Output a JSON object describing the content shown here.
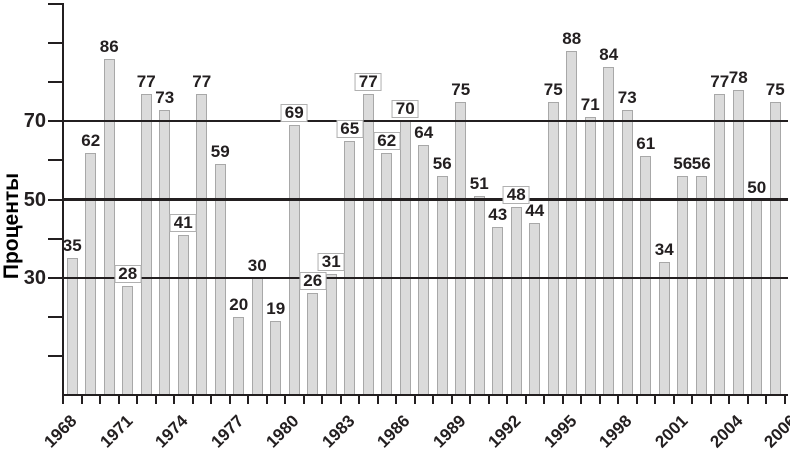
{
  "chart_data": {
    "type": "bar",
    "title": "",
    "ylabel": "Проценты",
    "ylim": [
      0,
      100
    ],
    "y_tick_step": 10,
    "grid": "horizontal-partial",
    "legend": null,
    "gridlines": [
      {
        "value": 30,
        "label": "30",
        "emphasis": false
      },
      {
        "value": 50,
        "label": "50",
        "emphasis": true
      },
      {
        "value": 70,
        "label": "70",
        "emphasis": false
      }
    ],
    "categories": [
      1968,
      1969,
      1970,
      1971,
      1972,
      1973,
      1974,
      1975,
      1976,
      1977,
      1978,
      1979,
      1980,
      1981,
      1982,
      1983,
      1984,
      1985,
      1986,
      1987,
      1988,
      1989,
      1990,
      1991,
      1992,
      1993,
      1994,
      1995,
      1996,
      1997,
      1998,
      1999,
      2000,
      2001,
      2002,
      2003,
      2004,
      2005,
      2006
    ],
    "values": [
      35,
      62,
      86,
      28,
      77,
      73,
      41,
      77,
      59,
      20,
      30,
      19,
      69,
      26,
      31,
      65,
      77,
      62,
      70,
      64,
      56,
      75,
      51,
      43,
      48,
      44,
      75,
      88,
      71,
      84,
      73,
      61,
      34,
      56,
      56,
      77,
      78,
      50,
      75
    ],
    "boxed_value_years": [
      1971,
      1974,
      1980,
      1981,
      1982,
      1983,
      1984,
      1985,
      1986,
      1992
    ],
    "x_tick_labels": [
      "1968",
      "1971",
      "1974",
      "1977",
      "1980",
      "1983",
      "1986",
      "1989",
      "1992",
      "1995",
      "1998",
      "2001",
      "2004",
      "2006"
    ],
    "colors": {
      "background": "#ffffff",
      "bar_fill": "#dbdbdb",
      "bar_border": "#a8a8a8",
      "line": "#231f20",
      "text": "#231f20",
      "value_box_bg": "#ffffff",
      "value_box_border": "#b0b0b0"
    }
  }
}
